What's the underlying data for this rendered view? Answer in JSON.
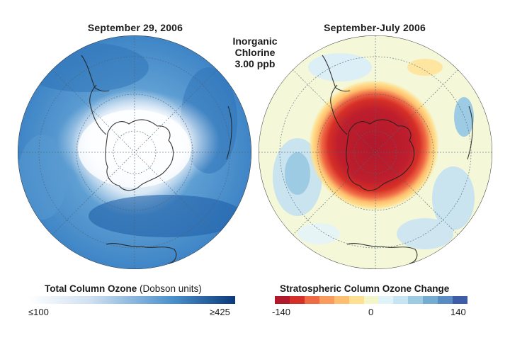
{
  "left_panel": {
    "title": "September 29, 2006",
    "legend": {
      "title_bold": "Total Column Ozone",
      "title_units": "(Dobson units)",
      "min_label": "≤100",
      "max_label": "≥425",
      "colors": [
        "#ffffff",
        "#cfe0f1",
        "#4a90cc",
        "#0b3a7a"
      ]
    }
  },
  "center_label": {
    "lines": [
      "Inorganic",
      "Chlorine",
      "3.00 ppb"
    ]
  },
  "right_panel": {
    "title": "September-July 2006",
    "legend": {
      "title": "Stratospheric Column Ozone Change",
      "min_label": "-140",
      "mid_label": "0",
      "max_label": "140",
      "colors": [
        "#b2182b",
        "#d62f27",
        "#ef6a45",
        "#f89b5c",
        "#fdbf6f",
        "#fee090",
        "#f2f6c8",
        "#e0f3f8",
        "#c6e4f1",
        "#9dcbe4",
        "#74add1",
        "#5a8cc4",
        "#3d5da8"
      ]
    }
  }
}
